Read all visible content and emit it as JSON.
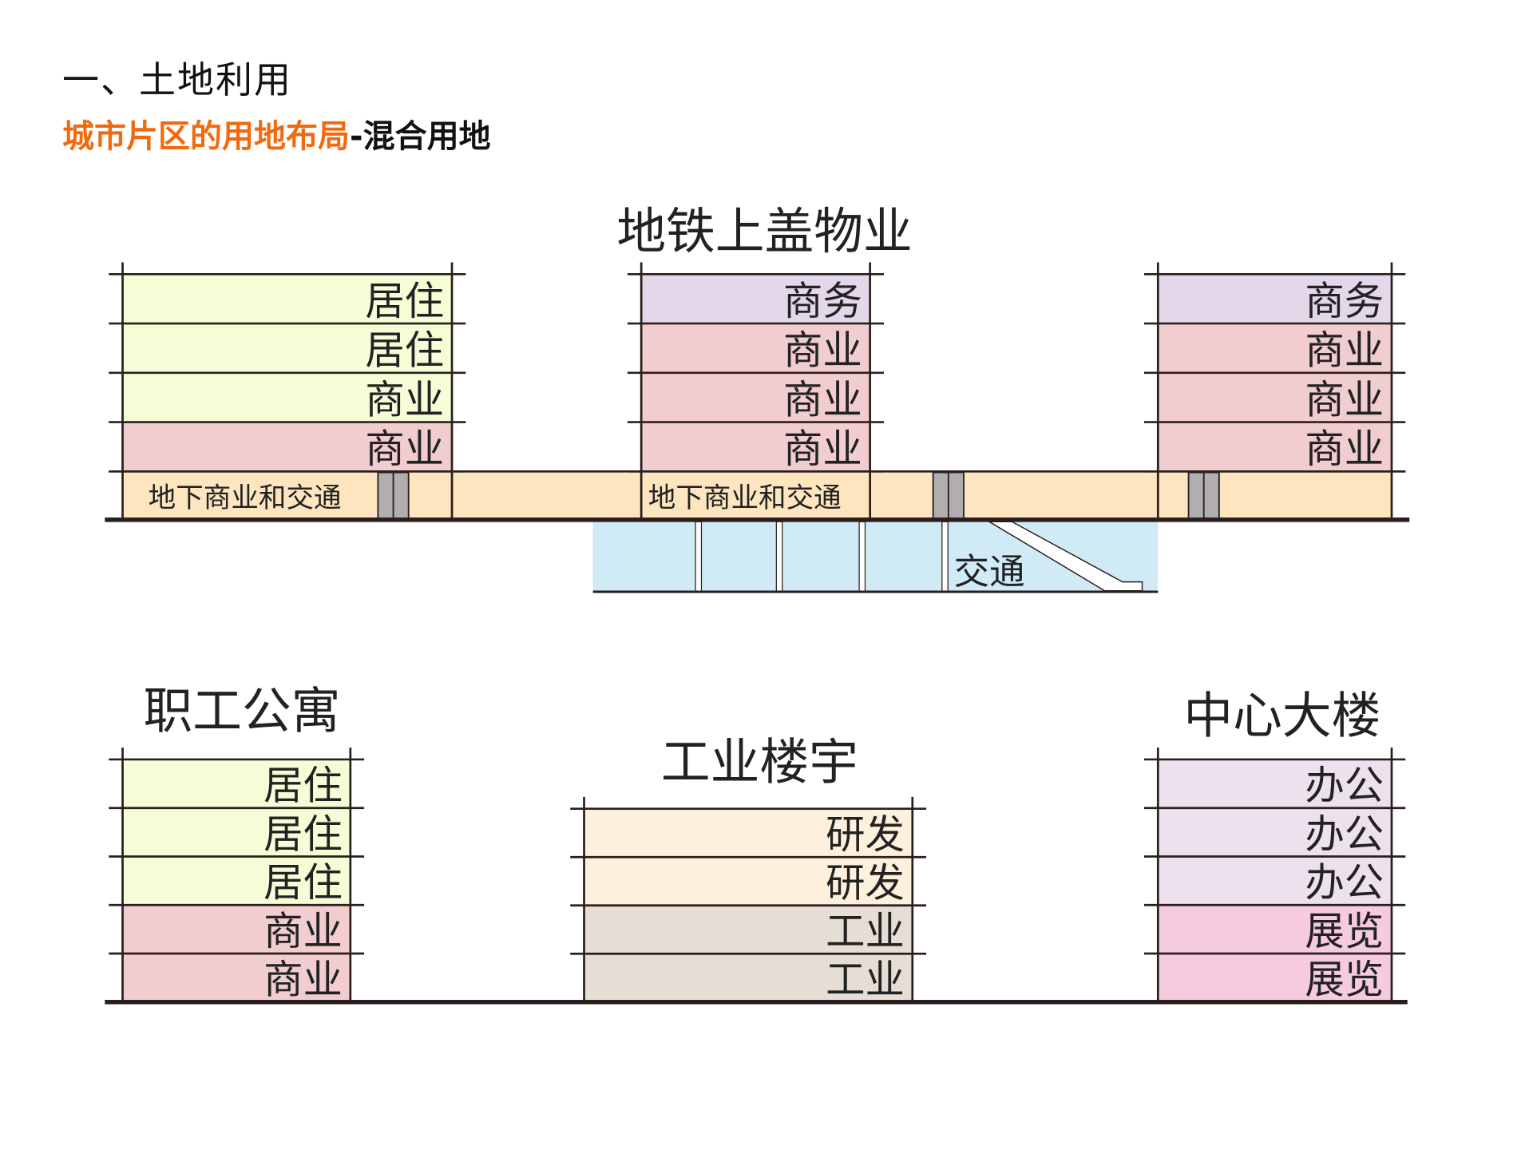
{
  "heading": "一、土地利用",
  "subtitle": {
    "highlight": "城市片区的用地布局",
    "rest": "-混合用地"
  },
  "colors": {
    "residential": "#f5fdd7",
    "commercial": "#f2cdd0",
    "business": "#e3d7e9",
    "basement": "#fde5c0",
    "transit": "#d0eaf6",
    "office": "#ede1ee",
    "exhibition": "#f6cadf",
    "rnd": "#fdf0dc",
    "industry": "#e6ddd5",
    "elevator": "#b0aeae",
    "line": "#2a1f1c",
    "accent": "#f26a10"
  },
  "top_section": {
    "title": "地铁上盖物业",
    "buildings": [
      {
        "floors": [
          {
            "label": "居住",
            "color": "residential"
          },
          {
            "label": "居住",
            "color": "residential"
          },
          {
            "label": "商业",
            "color": "residential"
          },
          {
            "label": "商业",
            "color": "commercial"
          }
        ]
      },
      {
        "floors": [
          {
            "label": "商务",
            "color": "business"
          },
          {
            "label": "商业",
            "color": "commercial"
          },
          {
            "label": "商业",
            "color": "commercial"
          },
          {
            "label": "商业",
            "color": "commercial"
          }
        ]
      },
      {
        "floors": [
          {
            "label": "商务",
            "color": "business"
          },
          {
            "label": "商业",
            "color": "commercial"
          },
          {
            "label": "商业",
            "color": "commercial"
          },
          {
            "label": "商业",
            "color": "commercial"
          }
        ]
      }
    ],
    "basement_labels": [
      "地下商业和交通",
      "地下商业和交通"
    ],
    "underground_label": "交通"
  },
  "bottom_section": {
    "buildings": [
      {
        "title": "职工公寓",
        "floors": [
          {
            "label": "居住",
            "color": "residential"
          },
          {
            "label": "居住",
            "color": "residential"
          },
          {
            "label": "居住",
            "color": "residential"
          },
          {
            "label": "商业",
            "color": "commercial"
          },
          {
            "label": "商业",
            "color": "commercial"
          }
        ]
      },
      {
        "title": "工业楼宇",
        "floors": [
          {
            "label": "研发",
            "color": "rnd"
          },
          {
            "label": "研发",
            "color": "rnd"
          },
          {
            "label": "工业",
            "color": "industry"
          },
          {
            "label": "工业",
            "color": "industry"
          }
        ]
      },
      {
        "title": "中心大楼",
        "floors": [
          {
            "label": "办公",
            "color": "office"
          },
          {
            "label": "办公",
            "color": "office"
          },
          {
            "label": "办公",
            "color": "office"
          },
          {
            "label": "展览",
            "color": "exhibition"
          },
          {
            "label": "展览",
            "color": "exhibition"
          }
        ]
      }
    ]
  }
}
